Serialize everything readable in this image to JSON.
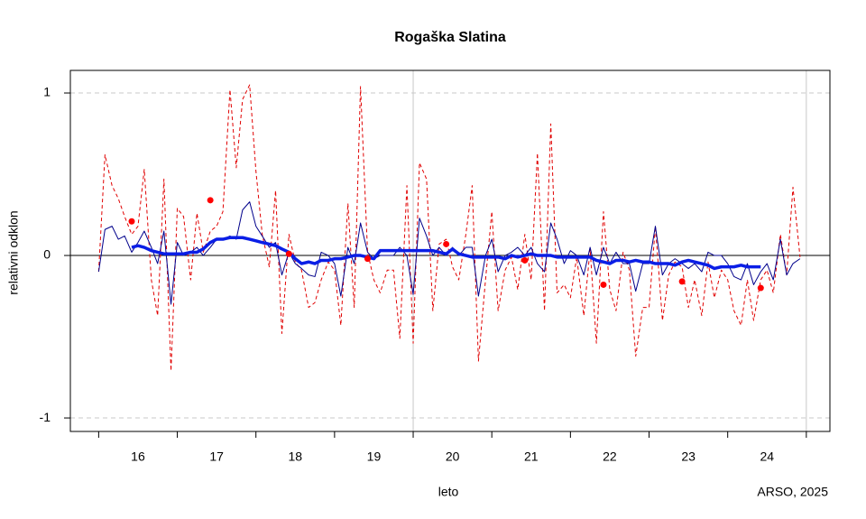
{
  "chart_data": {
    "type": "line",
    "title": "Rogaška Slatina",
    "xlabel": "leto",
    "ylabel": "relativni odklon",
    "source": "ARSO, 2025",
    "xlim": [
      15.14,
      24.8
    ],
    "ylim": [
      -1.083,
      1.139
    ],
    "xticks": [
      16,
      17,
      18,
      19,
      20,
      21,
      22,
      23,
      24
    ],
    "x_boundaries": [
      15.5,
      16.5,
      17.5,
      18.5,
      19.5,
      20.5,
      21.5,
      22.5,
      23.5,
      24.5
    ],
    "yticks": [
      1,
      0,
      -1
    ],
    "grid": true,
    "hline": 0,
    "vlines": [
      19.5,
      24.5
    ],
    "x": [
      15.5,
      15.58,
      15.67,
      15.75,
      15.83,
      15.92,
      16.0,
      16.08,
      16.17,
      16.25,
      16.33,
      16.42,
      16.5,
      16.58,
      16.67,
      16.75,
      16.83,
      16.92,
      17.0,
      17.08,
      17.17,
      17.25,
      17.33,
      17.42,
      17.5,
      17.58,
      17.67,
      17.75,
      17.83,
      17.92,
      18.0,
      18.08,
      18.17,
      18.25,
      18.33,
      18.42,
      18.5,
      18.58,
      18.67,
      18.75,
      18.83,
      18.92,
      19.0,
      19.08,
      19.17,
      19.25,
      19.33,
      19.42,
      19.5,
      19.58,
      19.67,
      19.75,
      19.83,
      19.92,
      20.0,
      20.08,
      20.17,
      20.25,
      20.33,
      20.42,
      20.5,
      20.58,
      20.67,
      20.75,
      20.83,
      20.92,
      21.0,
      21.08,
      21.17,
      21.25,
      21.33,
      21.42,
      21.5,
      21.58,
      21.67,
      21.75,
      21.83,
      21.92,
      22.0,
      22.08,
      22.17,
      22.25,
      22.33,
      22.42,
      22.5,
      22.58,
      22.67,
      22.75,
      22.83,
      22.92,
      23.0,
      23.08,
      23.17,
      23.25,
      23.33,
      23.42,
      23.5,
      23.58,
      23.67,
      23.75,
      23.83,
      23.92,
      24.0,
      24.08,
      24.17,
      24.25,
      24.33,
      24.42
    ],
    "series": [
      {
        "color": "#e00000",
        "style": "dashed",
        "width": 1,
        "values": [
          -0.1,
          0.62,
          0.43,
          0.35,
          0.24,
          0.13,
          0.18,
          0.53,
          -0.15,
          -0.37,
          0.47,
          -0.71,
          0.29,
          0.24,
          -0.15,
          0.26,
          0.02,
          0.15,
          0.18,
          0.27,
          1.02,
          0.54,
          0.96,
          1.05,
          0.52,
          0.13,
          -0.07,
          0.4,
          -0.48,
          0.13,
          -0.04,
          -0.09,
          -0.32,
          -0.29,
          -0.15,
          -0.04,
          -0.09,
          -0.43,
          0.32,
          -0.32,
          1.04,
          0.02,
          -0.15,
          -0.23,
          -0.09,
          -0.09,
          -0.51,
          0.43,
          -0.54,
          0.57,
          0.47,
          -0.34,
          0.07,
          0.1,
          -0.07,
          -0.15,
          0.13,
          0.43,
          -0.65,
          -0.15,
          0.27,
          -0.34,
          -0.09,
          -0.01,
          -0.21,
          0.13,
          -0.15,
          0.63,
          -0.34,
          0.81,
          -0.23,
          -0.18,
          -0.26,
          -0.01,
          -0.37,
          0.04,
          -0.54,
          0.27,
          -0.21,
          -0.34,
          0.02,
          -0.09,
          -0.62,
          -0.32,
          -0.32,
          0.18,
          -0.4,
          -0.12,
          -0.04,
          -0.07,
          -0.32,
          -0.15,
          -0.37,
          -0.04,
          -0.26,
          -0.09,
          -0.15,
          -0.34,
          -0.43,
          -0.15,
          -0.4,
          -0.15,
          -0.09,
          -0.23,
          0.13,
          -0.12,
          0.42,
          -0.01
        ]
      },
      {
        "color": "#00008b",
        "style": "solid",
        "width": 1,
        "values": [
          -0.1,
          0.16,
          0.18,
          0.1,
          0.12,
          0.02,
          0.08,
          0.15,
          0.05,
          -0.05,
          0.15,
          -0.3,
          0.08,
          0.0,
          0.02,
          0.05,
          0.0,
          0.05,
          0.1,
          0.1,
          0.12,
          0.1,
          0.28,
          0.33,
          0.18,
          0.12,
          0.05,
          0.08,
          -0.12,
          0.02,
          -0.05,
          -0.08,
          -0.12,
          -0.13,
          0.02,
          0.0,
          -0.05,
          -0.25,
          0.05,
          -0.05,
          0.2,
          0.02,
          -0.02,
          0.0,
          0.0,
          0.0,
          0.05,
          0.0,
          -0.24,
          0.23,
          0.12,
          0.0,
          0.05,
          0.0,
          0.05,
          0.0,
          0.05,
          0.05,
          -0.25,
          0.0,
          0.1,
          -0.1,
          0.0,
          0.02,
          0.05,
          0.0,
          0.05,
          -0.05,
          -0.1,
          0.2,
          0.1,
          -0.05,
          0.03,
          0.0,
          -0.12,
          0.05,
          -0.12,
          0.05,
          -0.05,
          0.02,
          -0.05,
          -0.05,
          -0.22,
          -0.05,
          -0.05,
          0.18,
          -0.12,
          -0.05,
          -0.02,
          -0.05,
          -0.08,
          -0.05,
          -0.1,
          0.02,
          0.0,
          0.0,
          -0.05,
          -0.13,
          -0.15,
          -0.05,
          -0.18,
          -0.1,
          -0.05,
          -0.15,
          0.1,
          -0.12,
          -0.05,
          -0.02
        ]
      },
      {
        "color": "#0a1ee6",
        "style": "solid",
        "width": 3.5,
        "values": [
          null,
          null,
          null,
          null,
          null,
          0.05,
          0.06,
          0.05,
          0.03,
          0.02,
          0.01,
          0.01,
          0.01,
          0.01,
          0.02,
          0.02,
          0.04,
          0.08,
          0.1,
          0.1,
          0.11,
          0.11,
          0.11,
          0.1,
          0.09,
          0.08,
          0.07,
          0.06,
          0.04,
          0.02,
          -0.02,
          -0.05,
          -0.04,
          -0.05,
          -0.03,
          -0.03,
          -0.02,
          -0.02,
          -0.01,
          0.0,
          0.0,
          -0.01,
          -0.02,
          0.03,
          0.03,
          0.03,
          0.03,
          0.03,
          0.03,
          0.03,
          0.03,
          0.03,
          0.02,
          0.01,
          0.04,
          0.01,
          0.0,
          -0.01,
          -0.01,
          -0.01,
          -0.01,
          -0.01,
          -0.02,
          0.0,
          -0.01,
          0.0,
          0.01,
          0.0,
          0.0,
          0.0,
          -0.01,
          -0.01,
          -0.01,
          -0.01,
          -0.01,
          -0.01,
          -0.03,
          -0.04,
          -0.05,
          -0.03,
          -0.03,
          -0.04,
          -0.03,
          -0.04,
          -0.04,
          -0.05,
          -0.05,
          -0.05,
          -0.06,
          -0.04,
          -0.03,
          -0.04,
          -0.05,
          -0.06,
          -0.08,
          -0.07,
          -0.07,
          -0.07,
          -0.06,
          -0.07,
          -0.07,
          -0.07,
          null,
          null,
          null,
          null,
          null,
          null
        ]
      },
      {
        "color": "#ff0000",
        "style": "points",
        "x": [
          15.92,
          16.92,
          17.92,
          18.92,
          19.92,
          20.92,
          21.92,
          22.92,
          23.92
        ],
        "values": [
          0.21,
          0.34,
          0.01,
          -0.02,
          0.07,
          -0.03,
          -0.18,
          -0.16,
          -0.2
        ]
      }
    ]
  }
}
